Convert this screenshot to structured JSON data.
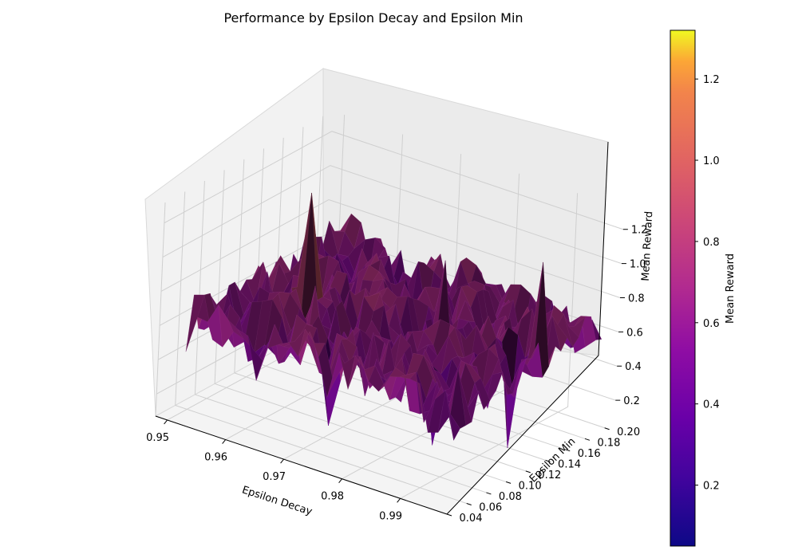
{
  "chart_data": {
    "type": "surface",
    "title": "Performance by Epsilon Decay and Epsilon Min",
    "xlabel": "Epsilon Decay",
    "ylabel": "Epsilon Min",
    "zlabel": "Mean Reward",
    "colorbar_label": "Mean Reward",
    "colormap": "plasma",
    "xlim": [
      0.948,
      0.998
    ],
    "ylim": [
      0.04,
      0.21
    ],
    "zlim": [
      0.07,
      1.32
    ],
    "clim": [
      0.05,
      1.32
    ],
    "x_ticks": [
      "0.95",
      "0.96",
      "0.97",
      "0.98",
      "0.99"
    ],
    "y_ticks": [
      "0.04",
      "0.06",
      "0.08",
      "0.10",
      "0.12",
      "0.14",
      "0.16",
      "0.18",
      "0.20"
    ],
    "z_ticks": [
      "0.2",
      "0.4",
      "0.6",
      "0.8",
      "1.0",
      "1.2"
    ],
    "colorbar_ticks": [
      "0.2",
      "0.4",
      "0.6",
      "0.8",
      "1.0",
      "1.2"
    ],
    "surface_mean": 0.62,
    "surface_range": [
      0.08,
      1.31
    ],
    "grid": true
  }
}
